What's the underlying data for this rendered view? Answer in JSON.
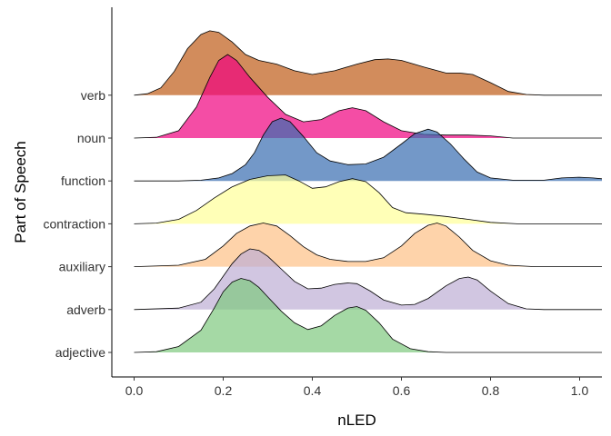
{
  "chart_data": {
    "type": "ridgeline",
    "xlabel": "nLED",
    "ylabel": "Part of Speech",
    "xlim": [
      -0.05,
      1.05
    ],
    "x_ticks": [
      0.0,
      0.2,
      0.4,
      0.6,
      0.8,
      1.0
    ],
    "x_tick_labels": [
      "0.0",
      "0.2",
      "0.4",
      "0.6",
      "0.8",
      "1.0"
    ],
    "grid": false,
    "legend": "none",
    "ridge_scale_rel_max": 1.95,
    "series": [
      {
        "name": "adjective",
        "color": "#7fc97f",
        "points": [
          [
            0.0,
            0.0
          ],
          [
            0.05,
            0.01
          ],
          [
            0.1,
            0.08
          ],
          [
            0.15,
            0.3
          ],
          [
            0.18,
            0.6
          ],
          [
            0.2,
            0.82
          ],
          [
            0.22,
            0.95
          ],
          [
            0.24,
            1.0
          ],
          [
            0.26,
            0.97
          ],
          [
            0.28,
            0.88
          ],
          [
            0.3,
            0.75
          ],
          [
            0.33,
            0.56
          ],
          [
            0.36,
            0.4
          ],
          [
            0.39,
            0.31
          ],
          [
            0.42,
            0.36
          ],
          [
            0.45,
            0.5
          ],
          [
            0.48,
            0.6
          ],
          [
            0.5,
            0.62
          ],
          [
            0.52,
            0.57
          ],
          [
            0.55,
            0.4
          ],
          [
            0.58,
            0.18
          ],
          [
            0.62,
            0.05
          ],
          [
            0.66,
            0.01
          ],
          [
            0.7,
            0.0
          ],
          [
            1.05,
            0.0
          ]
        ]
      },
      {
        "name": "adverb",
        "color": "#beaed4",
        "points": [
          [
            0.0,
            0.0
          ],
          [
            0.1,
            0.02
          ],
          [
            0.15,
            0.1
          ],
          [
            0.18,
            0.28
          ],
          [
            0.2,
            0.45
          ],
          [
            0.22,
            0.62
          ],
          [
            0.24,
            0.75
          ],
          [
            0.26,
            0.82
          ],
          [
            0.28,
            0.8
          ],
          [
            0.3,
            0.72
          ],
          [
            0.33,
            0.55
          ],
          [
            0.36,
            0.38
          ],
          [
            0.39,
            0.28
          ],
          [
            0.42,
            0.29
          ],
          [
            0.45,
            0.34
          ],
          [
            0.48,
            0.36
          ],
          [
            0.5,
            0.35
          ],
          [
            0.53,
            0.25
          ],
          [
            0.56,
            0.13
          ],
          [
            0.6,
            0.06
          ],
          [
            0.63,
            0.07
          ],
          [
            0.66,
            0.15
          ],
          [
            0.7,
            0.32
          ],
          [
            0.73,
            0.42
          ],
          [
            0.75,
            0.44
          ],
          [
            0.77,
            0.4
          ],
          [
            0.8,
            0.25
          ],
          [
            0.84,
            0.08
          ],
          [
            0.88,
            0.01
          ],
          [
            0.92,
            0.0
          ],
          [
            1.05,
            0.0
          ]
        ]
      },
      {
        "name": "auxiliary",
        "color": "#fdc086",
        "points": [
          [
            0.0,
            0.0
          ],
          [
            0.1,
            0.02
          ],
          [
            0.16,
            0.1
          ],
          [
            0.2,
            0.28
          ],
          [
            0.23,
            0.45
          ],
          [
            0.26,
            0.55
          ],
          [
            0.29,
            0.59
          ],
          [
            0.32,
            0.55
          ],
          [
            0.35,
            0.42
          ],
          [
            0.38,
            0.27
          ],
          [
            0.41,
            0.16
          ],
          [
            0.44,
            0.1
          ],
          [
            0.48,
            0.07
          ],
          [
            0.52,
            0.07
          ],
          [
            0.56,
            0.12
          ],
          [
            0.6,
            0.28
          ],
          [
            0.63,
            0.45
          ],
          [
            0.66,
            0.56
          ],
          [
            0.68,
            0.59
          ],
          [
            0.7,
            0.55
          ],
          [
            0.73,
            0.4
          ],
          [
            0.76,
            0.22
          ],
          [
            0.8,
            0.08
          ],
          [
            0.84,
            0.02
          ],
          [
            0.9,
            0.0
          ],
          [
            1.05,
            0.0
          ]
        ]
      },
      {
        "name": "contraction",
        "color": "#ffff99",
        "points": [
          [
            0.0,
            0.0
          ],
          [
            0.05,
            0.01
          ],
          [
            0.1,
            0.06
          ],
          [
            0.14,
            0.18
          ],
          [
            0.18,
            0.35
          ],
          [
            0.22,
            0.5
          ],
          [
            0.26,
            0.6
          ],
          [
            0.3,
            0.65
          ],
          [
            0.34,
            0.66
          ],
          [
            0.37,
            0.58
          ],
          [
            0.4,
            0.48
          ],
          [
            0.43,
            0.5
          ],
          [
            0.46,
            0.57
          ],
          [
            0.49,
            0.61
          ],
          [
            0.52,
            0.57
          ],
          [
            0.55,
            0.42
          ],
          [
            0.58,
            0.22
          ],
          [
            0.61,
            0.15
          ],
          [
            0.65,
            0.13
          ],
          [
            0.7,
            0.1
          ],
          [
            0.75,
            0.06
          ],
          [
            0.8,
            0.02
          ],
          [
            0.86,
            0.0
          ],
          [
            1.05,
            0.0
          ]
        ]
      },
      {
        "name": "function",
        "color": "#386cb0",
        "points": [
          [
            0.0,
            0.0
          ],
          [
            0.1,
            0.0
          ],
          [
            0.15,
            0.01
          ],
          [
            0.19,
            0.04
          ],
          [
            0.22,
            0.1
          ],
          [
            0.25,
            0.22
          ],
          [
            0.27,
            0.38
          ],
          [
            0.29,
            0.62
          ],
          [
            0.31,
            0.8
          ],
          [
            0.33,
            0.85
          ],
          [
            0.35,
            0.8
          ],
          [
            0.38,
            0.6
          ],
          [
            0.41,
            0.38
          ],
          [
            0.44,
            0.27
          ],
          [
            0.48,
            0.22
          ],
          [
            0.52,
            0.23
          ],
          [
            0.56,
            0.32
          ],
          [
            0.6,
            0.5
          ],
          [
            0.63,
            0.64
          ],
          [
            0.66,
            0.7
          ],
          [
            0.68,
            0.66
          ],
          [
            0.71,
            0.5
          ],
          [
            0.74,
            0.3
          ],
          [
            0.77,
            0.12
          ],
          [
            0.8,
            0.04
          ],
          [
            0.85,
            0.01
          ],
          [
            0.92,
            0.01
          ],
          [
            0.96,
            0.04
          ],
          [
            1.0,
            0.05
          ],
          [
            1.03,
            0.04
          ],
          [
            1.05,
            0.03
          ]
        ]
      },
      {
        "name": "noun",
        "color": "#f0027f",
        "points": [
          [
            0.0,
            0.0
          ],
          [
            0.05,
            0.01
          ],
          [
            0.1,
            0.1
          ],
          [
            0.14,
            0.42
          ],
          [
            0.17,
            0.82
          ],
          [
            0.19,
            1.05
          ],
          [
            0.21,
            1.13
          ],
          [
            0.23,
            1.05
          ],
          [
            0.26,
            0.82
          ],
          [
            0.3,
            0.55
          ],
          [
            0.34,
            0.32
          ],
          [
            0.38,
            0.22
          ],
          [
            0.42,
            0.25
          ],
          [
            0.46,
            0.37
          ],
          [
            0.49,
            0.41
          ],
          [
            0.52,
            0.37
          ],
          [
            0.56,
            0.22
          ],
          [
            0.6,
            0.1
          ],
          [
            0.65,
            0.05
          ],
          [
            0.7,
            0.04
          ],
          [
            0.75,
            0.04
          ],
          [
            0.8,
            0.03
          ],
          [
            0.85,
            0.0
          ],
          [
            1.05,
            0.0
          ]
        ]
      },
      {
        "name": "verb",
        "color": "#bf5b17",
        "points": [
          [
            0.0,
            0.0
          ],
          [
            0.03,
            0.02
          ],
          [
            0.06,
            0.1
          ],
          [
            0.09,
            0.32
          ],
          [
            0.12,
            0.63
          ],
          [
            0.15,
            0.82
          ],
          [
            0.17,
            0.87
          ],
          [
            0.19,
            0.85
          ],
          [
            0.22,
            0.72
          ],
          [
            0.25,
            0.55
          ],
          [
            0.28,
            0.47
          ],
          [
            0.32,
            0.42
          ],
          [
            0.36,
            0.33
          ],
          [
            0.4,
            0.28
          ],
          [
            0.45,
            0.33
          ],
          [
            0.5,
            0.42
          ],
          [
            0.54,
            0.48
          ],
          [
            0.57,
            0.49
          ],
          [
            0.6,
            0.47
          ],
          [
            0.65,
            0.38
          ],
          [
            0.7,
            0.3
          ],
          [
            0.73,
            0.3
          ],
          [
            0.76,
            0.28
          ],
          [
            0.8,
            0.17
          ],
          [
            0.84,
            0.05
          ],
          [
            0.88,
            0.01
          ],
          [
            0.92,
            0.0
          ],
          [
            1.05,
            0.0
          ]
        ]
      }
    ]
  }
}
